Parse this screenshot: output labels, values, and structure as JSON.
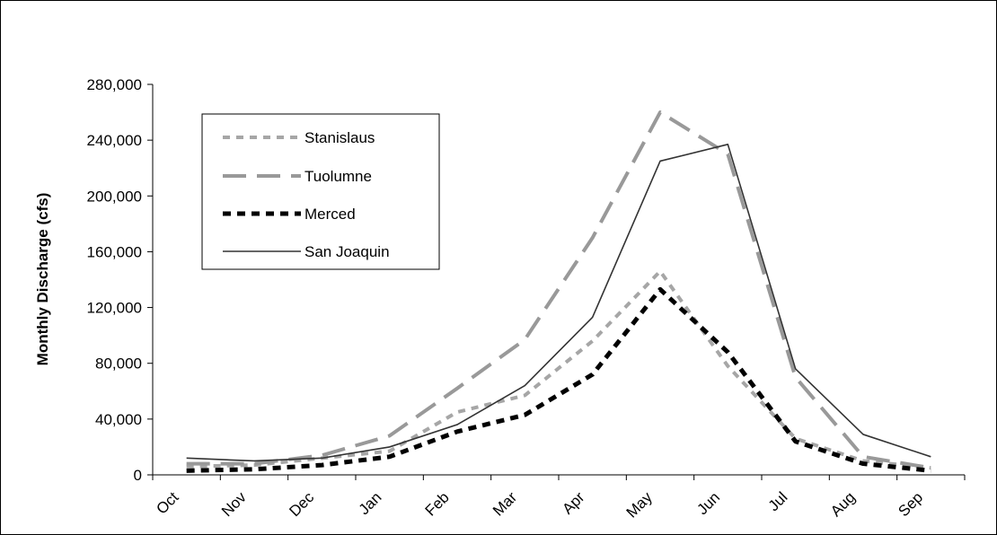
{
  "chart_data": {
    "type": "line",
    "title": "",
    "xlabel": "",
    "ylabel": "Monthly Discharge (cfs)",
    "categories": [
      "Oct",
      "Nov",
      "Dec",
      "Jan",
      "Feb",
      "Mar",
      "Apr",
      "May",
      "Jun",
      "Jul",
      "Aug",
      "Sep"
    ],
    "ylim": [
      0,
      280000
    ],
    "yticks": [
      0,
      40000,
      80000,
      120000,
      160000,
      200000,
      240000,
      280000
    ],
    "ytick_labels": [
      "0",
      "40,000",
      "80,000",
      "120,000",
      "160,000",
      "200,000",
      "240,000",
      "280,000"
    ],
    "grid": false,
    "legend_position": "top-left",
    "series": [
      {
        "name": "Stanislaus",
        "color": "#a6a6a6",
        "style": "short-dash",
        "values": [
          6000,
          7000,
          12000,
          17000,
          45000,
          57000,
          96000,
          146000,
          78000,
          26000,
          10000,
          5000
        ]
      },
      {
        "name": "Tuolumne",
        "color": "#999999",
        "style": "long-dash",
        "values": [
          8000,
          8000,
          14000,
          28000,
          62000,
          97000,
          170000,
          260000,
          230000,
          70000,
          13000,
          5000
        ]
      },
      {
        "name": "Merced",
        "color": "#000000",
        "style": "short-dash-bold",
        "values": [
          3000,
          4000,
          7000,
          13000,
          31000,
          43000,
          72000,
          133000,
          88000,
          24000,
          8000,
          3000
        ]
      },
      {
        "name": "San Joaquin",
        "color": "#333333",
        "style": "solid",
        "values": [
          12000,
          10000,
          12000,
          20000,
          36000,
          64000,
          113000,
          225000,
          237000,
          76000,
          29000,
          13000
        ]
      }
    ]
  }
}
